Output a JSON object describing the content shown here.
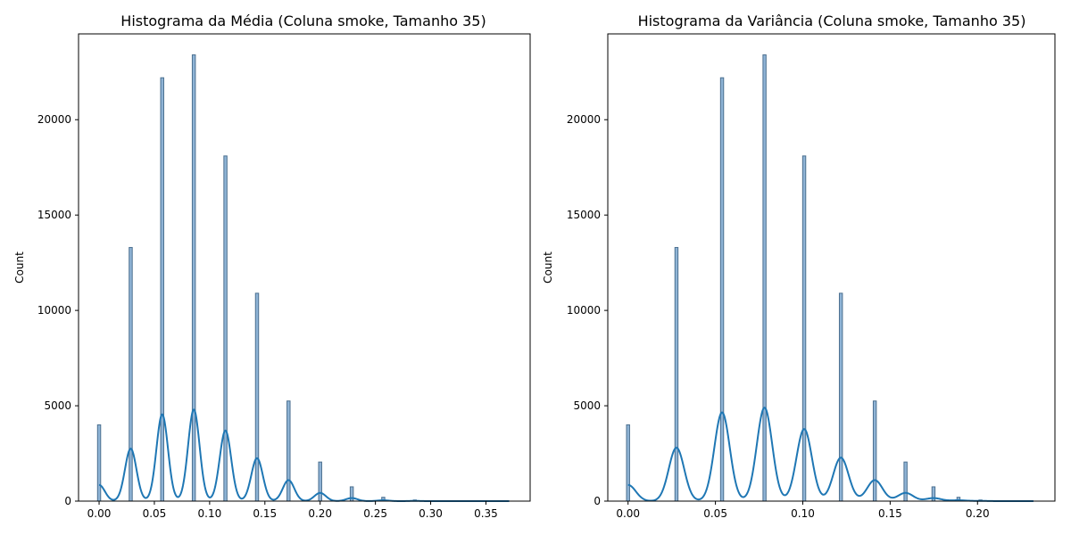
{
  "colors": {
    "bar_fill": "#8fb4d6",
    "bar_edge": "#4b6f8f",
    "kde": "#1f77b4"
  },
  "chart_data": [
    {
      "type": "histogram",
      "title": "Histograma da Média (Coluna smoke, Tamanho 35)",
      "xlabel": "",
      "ylabel": "Count",
      "xlim": [
        -0.0186,
        0.39
      ],
      "ylim": [
        0,
        24500
      ],
      "xticks": [
        0.0,
        0.05,
        0.1,
        0.15,
        0.2,
        0.25,
        0.3,
        0.35
      ],
      "xtick_labels": [
        "0.00",
        "0.05",
        "0.10",
        "0.15",
        "0.20",
        "0.25",
        "0.30",
        "0.35"
      ],
      "yticks": [
        0,
        5000,
        10000,
        15000,
        20000
      ],
      "ytick_labels": [
        "0",
        "5000",
        "10000",
        "15000",
        "20000"
      ],
      "bin_width": 0.0028,
      "bars": [
        {
          "x": 0.0,
          "count": 4000
        },
        {
          "x": 0.0286,
          "count": 13300
        },
        {
          "x": 0.0571,
          "count": 22200
        },
        {
          "x": 0.0857,
          "count": 23400
        },
        {
          "x": 0.1143,
          "count": 18100
        },
        {
          "x": 0.1429,
          "count": 10900
        },
        {
          "x": 0.1714,
          "count": 5250
        },
        {
          "x": 0.2,
          "count": 2050
        },
        {
          "x": 0.2286,
          "count": 750
        },
        {
          "x": 0.2571,
          "count": 200
        },
        {
          "x": 0.2857,
          "count": 60
        },
        {
          "x": 0.3143,
          "count": 15
        }
      ],
      "kde": [
        {
          "mu": 0.0,
          "peak": 850
        },
        {
          "mu": 0.0286,
          "peak": 2750
        },
        {
          "mu": 0.0571,
          "peak": 4550
        },
        {
          "mu": 0.0857,
          "peak": 4800
        },
        {
          "mu": 0.1143,
          "peak": 3700
        },
        {
          "mu": 0.1429,
          "peak": 2250
        },
        {
          "mu": 0.1714,
          "peak": 1100
        },
        {
          "mu": 0.2,
          "peak": 430
        },
        {
          "mu": 0.2286,
          "peak": 160
        },
        {
          "mu": 0.2571,
          "peak": 45
        },
        {
          "mu": 0.2857,
          "peak": 12
        }
      ],
      "kde_sigma": 0.0052,
      "kde_xmax": 0.371
    },
    {
      "type": "histogram",
      "title": "Histograma da Variância (Coluna smoke, Tamanho 35)",
      "xlabel": "",
      "ylabel": "Count",
      "xlim": [
        -0.0116,
        0.2443
      ],
      "ylim": [
        0,
        24500
      ],
      "xticks": [
        0.0,
        0.05,
        0.1,
        0.15,
        0.2
      ],
      "xtick_labels": [
        "0.00",
        "0.05",
        "0.10",
        "0.15",
        "0.20"
      ],
      "yticks": [
        0,
        5000,
        10000,
        15000,
        20000
      ],
      "ytick_labels": [
        "0",
        "5000",
        "10000",
        "15000",
        "20000"
      ],
      "bin_width": 0.00175,
      "bars": [
        {
          "x": 0.0,
          "count": 4000
        },
        {
          "x": 0.0277,
          "count": 13300
        },
        {
          "x": 0.0538,
          "count": 22200
        },
        {
          "x": 0.0781,
          "count": 23400
        },
        {
          "x": 0.1008,
          "count": 18100
        },
        {
          "x": 0.1218,
          "count": 10900
        },
        {
          "x": 0.1412,
          "count": 5250
        },
        {
          "x": 0.1588,
          "count": 2050
        },
        {
          "x": 0.1748,
          "count": 750
        },
        {
          "x": 0.1891,
          "count": 200
        },
        {
          "x": 0.2017,
          "count": 60
        },
        {
          "x": 0.2126,
          "count": 15
        }
      ],
      "kde": [
        {
          "mu": 0.0,
          "peak": 850
        },
        {
          "mu": 0.0277,
          "peak": 2800
        },
        {
          "mu": 0.0538,
          "peak": 4650
        },
        {
          "mu": 0.0781,
          "peak": 4900
        },
        {
          "mu": 0.1008,
          "peak": 3780
        },
        {
          "mu": 0.1218,
          "peak": 2280
        },
        {
          "mu": 0.1412,
          "peak": 1100
        },
        {
          "mu": 0.1588,
          "peak": 430
        },
        {
          "mu": 0.1748,
          "peak": 160
        },
        {
          "mu": 0.1891,
          "peak": 45
        },
        {
          "mu": 0.2017,
          "peak": 12
        }
      ],
      "kde_sigma": 0.0044,
      "kde_xmax": 0.232
    }
  ]
}
